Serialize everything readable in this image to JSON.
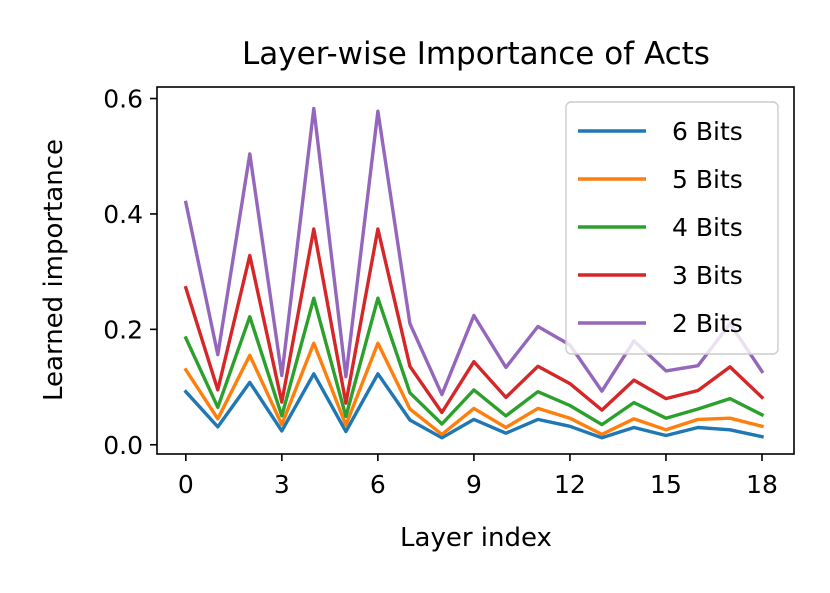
{
  "chart_data": {
    "type": "line",
    "title": "Layer-wise Importance of Acts",
    "xlabel": "Layer index",
    "ylabel": "Learned importance",
    "x": [
      0,
      1,
      2,
      3,
      4,
      5,
      6,
      7,
      8,
      9,
      10,
      11,
      12,
      13,
      14,
      15,
      16,
      17,
      18
    ],
    "xticks": [
      "0",
      "3",
      "6",
      "9",
      "12",
      "15",
      "18"
    ],
    "yticks": [
      "0.0",
      "0.2",
      "0.4",
      "0.6"
    ],
    "xlim": [
      -0.9,
      19.0
    ],
    "ylim": [
      -0.016,
      0.62
    ],
    "grid": false,
    "legend_position": "upper-right",
    "series": [
      {
        "name": "6 Bits",
        "color": "#1f77b4",
        "values": [
          0.092,
          0.031,
          0.108,
          0.024,
          0.123,
          0.023,
          0.123,
          0.043,
          0.012,
          0.044,
          0.02,
          0.044,
          0.032,
          0.012,
          0.03,
          0.016,
          0.03,
          0.026,
          0.014
        ]
      },
      {
        "name": "5 Bits",
        "color": "#ff7f0e",
        "values": [
          0.13,
          0.045,
          0.155,
          0.035,
          0.176,
          0.034,
          0.176,
          0.062,
          0.018,
          0.063,
          0.03,
          0.063,
          0.046,
          0.018,
          0.045,
          0.026,
          0.044,
          0.046,
          0.032
        ]
      },
      {
        "name": "4 Bits",
        "color": "#2ca02c",
        "values": [
          0.185,
          0.065,
          0.222,
          0.05,
          0.254,
          0.049,
          0.254,
          0.09,
          0.036,
          0.095,
          0.05,
          0.092,
          0.068,
          0.035,
          0.073,
          0.046,
          0.062,
          0.08,
          0.052
        ]
      },
      {
        "name": "3 Bits",
        "color": "#d62728",
        "values": [
          0.272,
          0.095,
          0.328,
          0.074,
          0.374,
          0.072,
          0.374,
          0.136,
          0.056,
          0.144,
          0.082,
          0.136,
          0.106,
          0.06,
          0.112,
          0.08,
          0.094,
          0.135,
          0.082
        ]
      },
      {
        "name": "2 Bits",
        "color": "#9467bd",
        "values": [
          0.42,
          0.156,
          0.504,
          0.12,
          0.583,
          0.118,
          0.578,
          0.21,
          0.087,
          0.224,
          0.134,
          0.205,
          0.173,
          0.093,
          0.18,
          0.128,
          0.137,
          0.21,
          0.127
        ]
      }
    ]
  }
}
